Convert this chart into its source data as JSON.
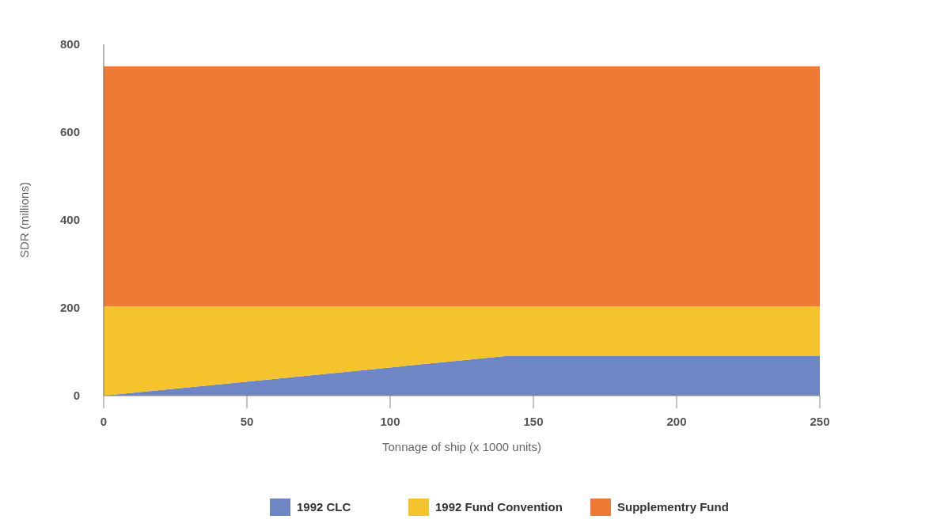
{
  "chart_data": {
    "type": "area",
    "stacked": true,
    "xlabel": "Tonnage of ship (x 1000 units)",
    "ylabel": "SDR (millions)",
    "x": [
      0,
      140,
      250
    ],
    "series": [
      {
        "name": "1992 CLC",
        "color": "#6f86c4",
        "values": [
          0,
          90,
          90
        ]
      },
      {
        "name": "1992 Fund Convention",
        "color": "#f5c42c",
        "values": [
          203,
          113,
          113
        ]
      },
      {
        "name": "Supplementry Fund",
        "color": "#ee7a35",
        "values": [
          547,
          547,
          547
        ]
      }
    ],
    "xlim": [
      0,
      250
    ],
    "xticks": [
      0,
      50,
      100,
      150,
      200,
      250
    ],
    "ylim": [
      0,
      800
    ],
    "yticks": [
      0,
      200,
      400,
      600,
      800
    ],
    "legend": "bottom"
  }
}
